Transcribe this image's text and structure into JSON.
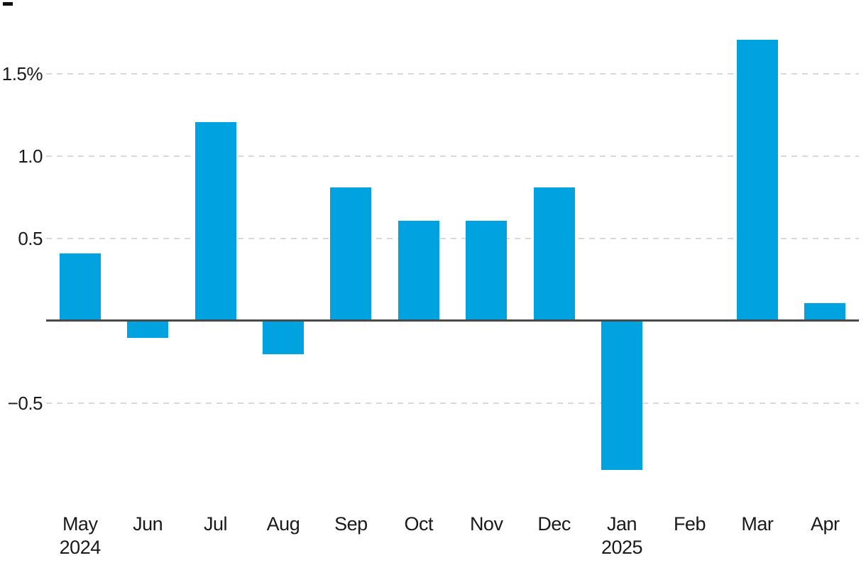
{
  "chart_data": {
    "type": "bar",
    "title": "",
    "xlabel": "",
    "ylabel": "",
    "categories": [
      "May",
      "Jun",
      "Jul",
      "Aug",
      "Sep",
      "Oct",
      "Nov",
      "Dec",
      "Jan",
      "Feb",
      "Mar",
      "Apr"
    ],
    "category_sublabels": [
      "2024",
      "",
      "",
      "",
      "",
      "",
      "",
      "",
      "2025",
      "",
      "",
      ""
    ],
    "values": [
      0.4,
      -0.1,
      1.2,
      -0.2,
      0.8,
      0.6,
      0.6,
      0.8,
      -0.9,
      0,
      1.7,
      0.1
    ],
    "unit": "%",
    "y_ticks": [
      {
        "value": 1.5,
        "label": "1.5%"
      },
      {
        "value": 1.0,
        "label": "1.0"
      },
      {
        "value": 0.5,
        "label": "0.5"
      },
      {
        "value": -0.5,
        "label": "−0.5"
      }
    ],
    "ylim": [
      -1.0,
      1.85
    ],
    "grid": "horizontal-dashed",
    "legend": "none",
    "bar_color": "#00a3e0",
    "gridline_color": "#d9d9d9",
    "axis_line_color": "#4a4a4a",
    "text_color": "#1a1a1a"
  }
}
